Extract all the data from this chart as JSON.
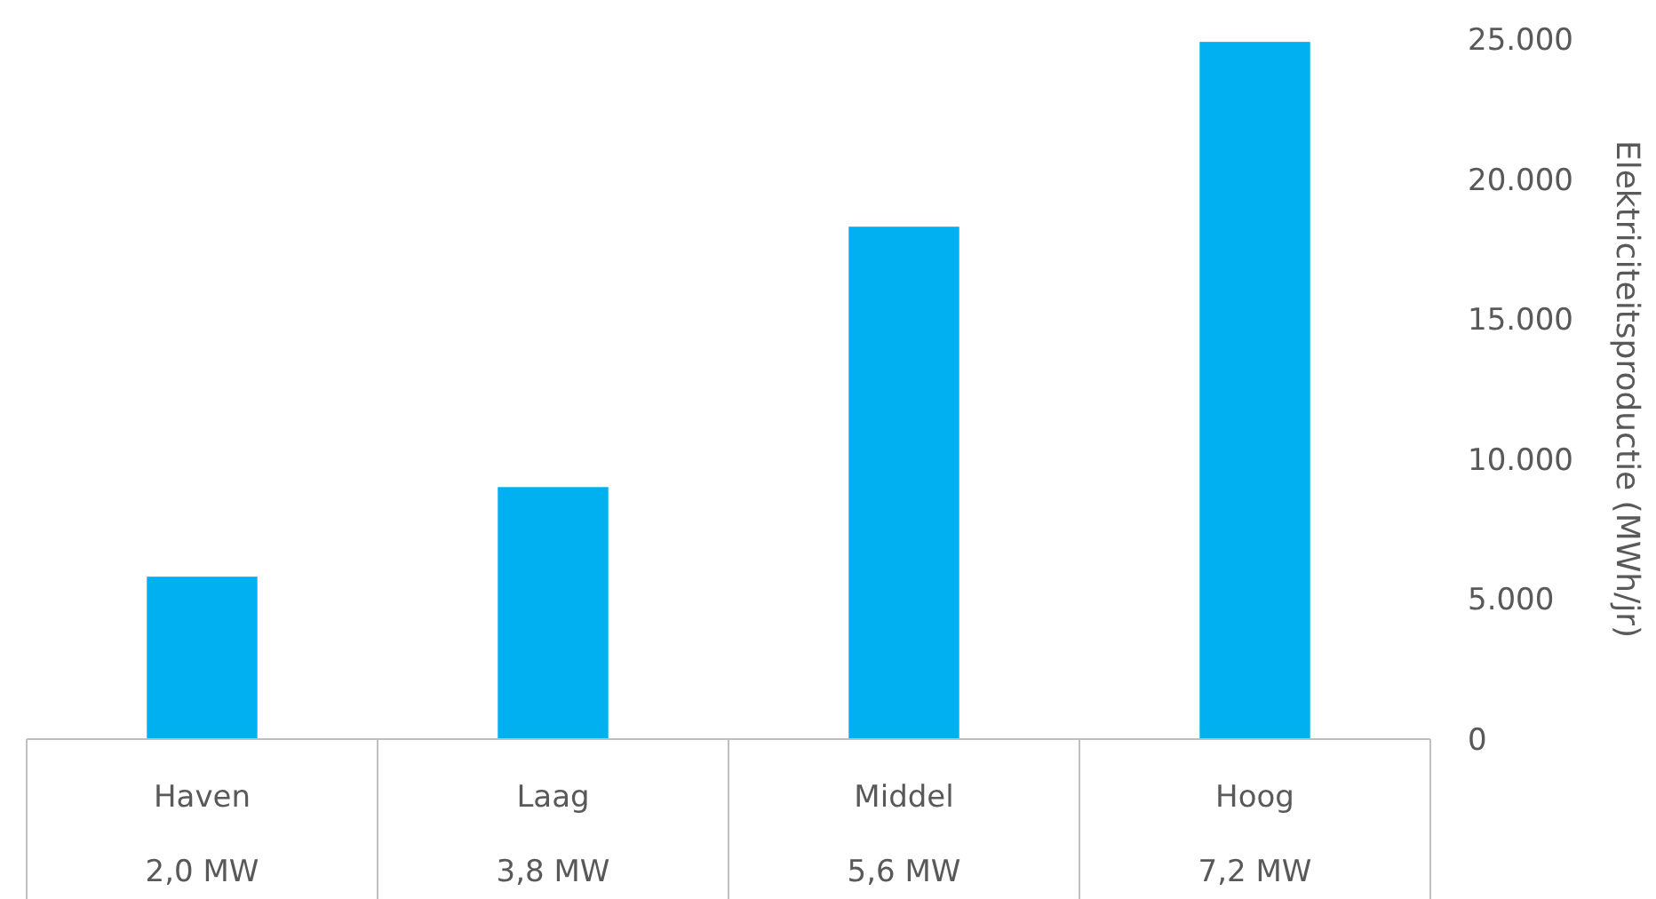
{
  "chart_data": {
    "type": "bar",
    "ylabel": "Elektriciteitsproductie (MWh/jr)",
    "categories": [
      "Haven\n2,0 MW",
      "Laag\n3,8 MW",
      "Middel\n5,6 MW",
      "Hoog\n7,2 MW"
    ],
    "values": [
      5800,
      9000,
      18300,
      24900
    ],
    "color": "#00b0f0",
    "ylim": [
      0,
      25000
    ],
    "yticks": [
      0,
      {
        "value": 5000,
        "label": "5.000"
      },
      {
        "value": 10000,
        "label": "10.000"
      },
      {
        "value": 15000,
        "label": "15.000"
      },
      {
        "value": 20000,
        "label": "20.000"
      },
      {
        "value": 25000,
        "label": "25.000"
      }
    ],
    "grid": false
  }
}
